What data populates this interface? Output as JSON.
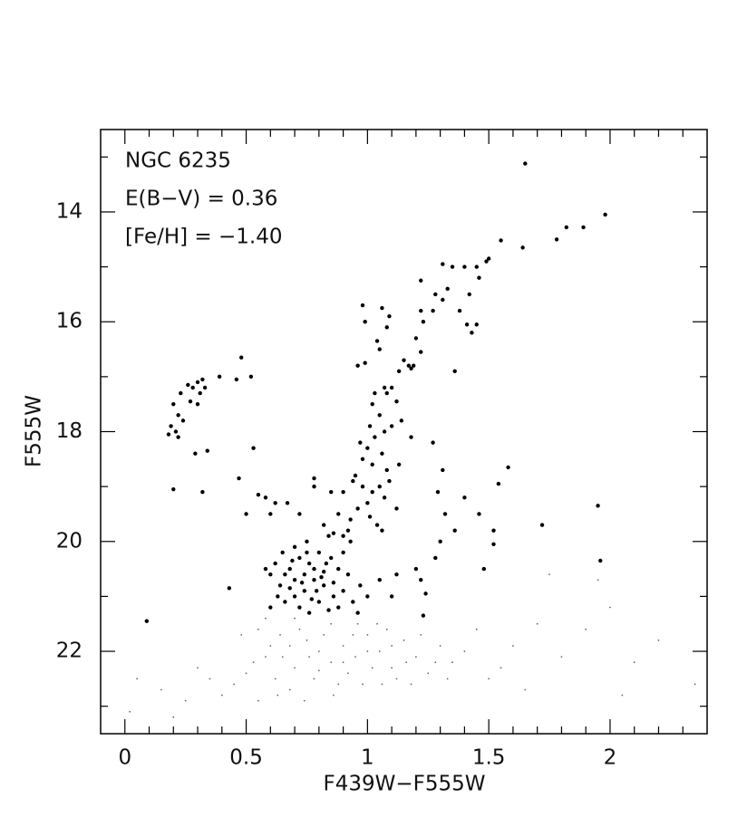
{
  "chart_data": {
    "type": "scatter",
    "xlabel": "F439W−F555W",
    "ylabel": "F555W",
    "annotations": [
      "NGC 6235",
      "E(B−V) = 0.36",
      "[Fe/H] = −1.40"
    ],
    "xlim": [
      -0.1,
      2.4
    ],
    "ylim": [
      23.5,
      12.5
    ],
    "xticks": [
      0,
      0.5,
      1,
      1.5,
      2
    ],
    "xminor_ticks": [
      0.1,
      0.2,
      0.3,
      0.4,
      0.6,
      0.7,
      0.8,
      0.9,
      1.1,
      1.2,
      1.3,
      1.4,
      1.6,
      1.7,
      1.8,
      1.9,
      2.1,
      2.2,
      2.3
    ],
    "yticks": [
      14,
      16,
      18,
      20,
      22
    ],
    "yminor_ticks": [
      13,
      15,
      17,
      19,
      21,
      23
    ],
    "series": [
      {
        "color": "#000000",
        "marker_size": 2.2,
        "x": [
          1.65,
          1.98,
          1.89,
          1.82,
          1.78,
          1.64,
          1.55,
          1.5,
          1.49,
          1.45,
          1.46,
          1.4,
          1.35,
          1.31,
          1.33,
          1.31,
          1.28,
          1.27,
          1.22,
          1.22,
          1.23,
          1.42,
          1.43,
          1.41,
          1.38,
          1.45,
          1.36,
          1.2,
          1.22,
          1.17,
          1.18,
          1.19,
          1.15,
          1.13,
          1.1,
          1.06,
          1.09,
          1.08,
          0.98,
          0.99,
          1.04,
          0.96,
          0.99,
          1.05,
          1.07,
          1.03,
          1.02,
          1.08,
          1.05,
          1.12,
          1.14,
          1.1,
          1.07,
          1.03,
          1.0,
          0.98,
          1.02,
          1.06,
          1.08,
          0.95,
          0.98,
          1.02,
          1.05,
          1.07,
          1.0,
          0.96,
          0.93,
          1.01,
          1.04,
          0.92,
          0.97,
          1.01,
          0.94,
          0.9,
          0.88,
          1.06,
          1.09,
          1.12,
          0.18,
          0.19,
          0.21,
          0.22,
          0.2,
          0.23,
          0.26,
          0.28,
          0.3,
          0.31,
          0.32,
          0.33,
          0.3,
          0.27,
          0.24,
          0.22,
          0.29,
          0.34,
          0.32,
          0.2,
          0.39,
          0.46,
          0.48,
          0.52,
          0.53,
          0.47,
          0.5,
          0.43,
          0.09,
          0.55,
          0.58,
          0.62,
          0.67,
          0.72,
          0.78,
          0.78,
          0.82,
          0.86,
          0.9,
          0.84,
          0.75,
          0.7,
          0.65,
          0.62,
          0.6,
          0.64,
          0.68,
          0.72,
          0.76,
          0.8,
          0.85,
          0.88,
          0.92,
          0.9,
          0.86,
          0.82,
          0.78,
          0.74,
          0.7,
          0.66,
          0.72,
          0.76,
          0.8,
          0.84,
          0.88,
          0.94,
          0.97,
          0.96,
          1.0,
          0.74,
          0.78,
          0.82,
          0.7,
          0.66,
          0.79,
          0.83,
          0.75,
          0.69,
          0.63,
          0.6,
          0.58,
          0.68,
          0.73,
          0.77,
          0.81,
          0.86,
          0.9,
          0.93,
          1.05,
          1.1,
          1.12,
          1.2,
          1.22,
          1.24,
          1.23,
          1.28,
          1.3,
          1.29,
          1.31,
          1.27,
          1.32,
          1.36,
          1.4,
          1.46,
          1.48,
          1.52,
          1.52,
          1.54,
          1.58,
          1.72,
          1.95,
          1.96,
          1.18,
          1.13,
          0.85,
          0.6
        ],
        "values": [
          13.12,
          14.05,
          14.28,
          14.28,
          14.5,
          14.65,
          14.52,
          14.85,
          14.9,
          15.0,
          15.2,
          15.0,
          15.0,
          14.95,
          15.4,
          15.6,
          15.5,
          15.8,
          15.25,
          15.8,
          16.0,
          15.5,
          16.2,
          16.05,
          15.8,
          16.05,
          16.9,
          16.3,
          16.55,
          16.8,
          16.85,
          16.8,
          16.7,
          16.9,
          17.2,
          15.75,
          15.9,
          16.1,
          15.7,
          16.0,
          16.35,
          16.8,
          16.75,
          16.5,
          17.2,
          17.3,
          17.5,
          17.3,
          17.7,
          17.45,
          17.8,
          17.9,
          18.0,
          18.1,
          18.3,
          18.5,
          18.6,
          18.4,
          18.7,
          18.8,
          19.0,
          19.1,
          19.0,
          19.2,
          19.3,
          19.4,
          19.6,
          19.55,
          19.7,
          19.8,
          18.2,
          17.9,
          18.9,
          19.1,
          19.5,
          19.8,
          18.9,
          19.4,
          18.05,
          17.9,
          18.0,
          17.7,
          17.5,
          17.3,
          17.15,
          17.2,
          17.1,
          17.3,
          17.05,
          17.2,
          17.5,
          17.45,
          17.8,
          18.1,
          18.4,
          18.35,
          19.1,
          19.05,
          17.0,
          17.05,
          16.65,
          17.0,
          18.3,
          18.85,
          19.5,
          20.85,
          21.45,
          19.15,
          19.2,
          19.3,
          19.3,
          19.5,
          18.85,
          19.0,
          19.7,
          19.85,
          19.9,
          19.9,
          20.0,
          20.1,
          20.2,
          20.4,
          20.6,
          20.8,
          20.5,
          20.3,
          20.4,
          20.2,
          20.3,
          20.5,
          20.6,
          20.9,
          21.0,
          20.8,
          20.7,
          20.9,
          21.0,
          21.1,
          21.2,
          21.3,
          21.1,
          21.25,
          21.2,
          21.1,
          20.8,
          21.3,
          21.0,
          20.6,
          20.5,
          20.55,
          20.7,
          20.6,
          20.9,
          20.4,
          20.2,
          20.35,
          21.0,
          21.2,
          20.5,
          20.85,
          20.75,
          21.05,
          20.65,
          20.75,
          20.2,
          20.0,
          20.7,
          21.0,
          20.6,
          20.5,
          20.7,
          20.95,
          21.35,
          20.3,
          20.0,
          19.1,
          18.7,
          18.2,
          19.5,
          19.8,
          19.2,
          19.5,
          20.5,
          19.8,
          20.05,
          18.95,
          18.65,
          19.7,
          19.35,
          20.35,
          18.1,
          18.6,
          19.1,
          19.5
        ]
      },
      {
        "color": "#666666",
        "marker_size": 0.9,
        "x": [
          0.55,
          0.6,
          0.65,
          0.7,
          0.75,
          0.8,
          0.85,
          0.9,
          0.95,
          1.0,
          1.05,
          1.1,
          1.15,
          1.2,
          1.25,
          1.3,
          1.35,
          0.5,
          0.45,
          0.4,
          0.55,
          0.62,
          0.68,
          0.72,
          0.78,
          0.82,
          0.88,
          0.92,
          0.98,
          1.02,
          1.08,
          1.12,
          1.18,
          1.22,
          1.28,
          1.4,
          1.45,
          1.5,
          1.6,
          1.7,
          1.8,
          1.9,
          2.0,
          2.1,
          2.2,
          2.35,
          1.75,
          1.95,
          0.3,
          0.25,
          0.15,
          0.05,
          0.02,
          0.2,
          0.35,
          0.48,
          0.58,
          0.63,
          0.74,
          0.86,
          0.96,
          1.06,
          1.16,
          1.33,
          1.55,
          1.65,
          2.05,
          0.7,
          0.85,
          0.68,
          0.76,
          0.9,
          1.0,
          0.8,
          0.64,
          0.94,
          1.1,
          0.58,
          0.53,
          1.04
        ],
        "values": [
          21.6,
          21.9,
          22.1,
          22.3,
          21.8,
          22.0,
          22.2,
          21.9,
          22.1,
          21.7,
          22.0,
          22.3,
          21.8,
          22.1,
          22.4,
          21.9,
          22.2,
          22.4,
          22.6,
          22.8,
          22.9,
          22.5,
          22.7,
          21.6,
          22.5,
          21.7,
          22.6,
          22.4,
          22.6,
          22.3,
          21.6,
          22.5,
          22.6,
          21.7,
          22.2,
          22.0,
          21.6,
          22.5,
          21.9,
          21.5,
          22.1,
          21.6,
          21.2,
          22.2,
          21.8,
          22.6,
          20.6,
          20.7,
          22.3,
          22.9,
          22.7,
          22.5,
          23.1,
          23.2,
          22.5,
          21.7,
          21.4,
          22.8,
          22.9,
          22.8,
          21.5,
          22.6,
          22.2,
          22.5,
          22.3,
          22.7,
          22.8,
          21.4,
          21.5,
          21.9,
          22.1,
          22.2,
          22.0,
          22.35,
          21.7,
          21.7,
          21.9,
          22.1,
          22.2,
          21.5
        ]
      }
    ]
  }
}
